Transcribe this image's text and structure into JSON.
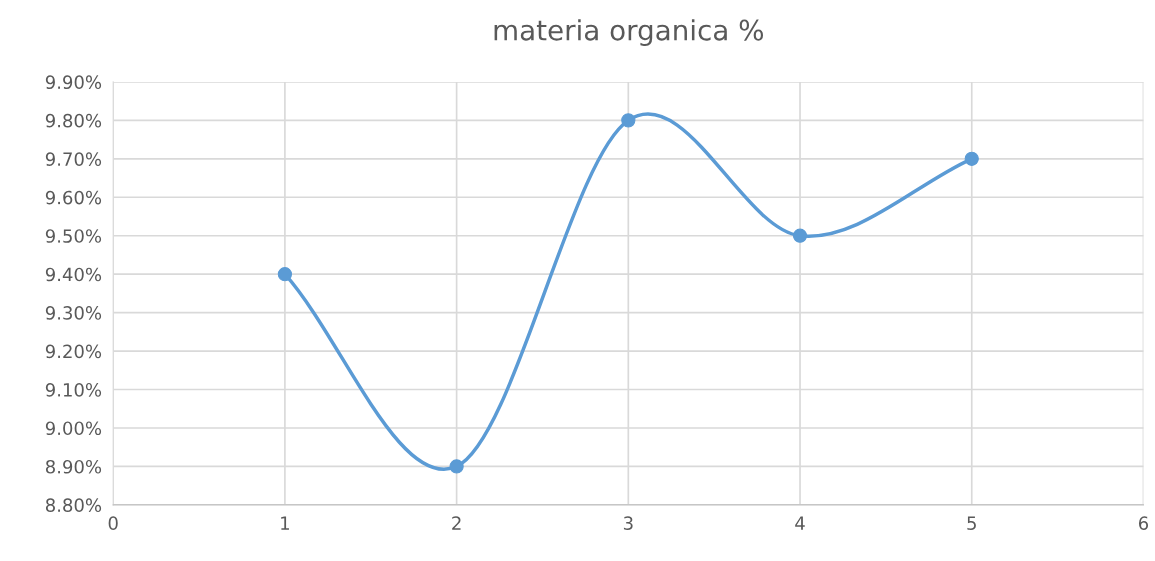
{
  "chart_data": {
    "type": "line",
    "title": "materia organica %",
    "x": [
      1,
      2,
      3,
      4,
      5
    ],
    "series": [
      {
        "color": "#5b9bd5",
        "values": [
          9.4,
          8.9,
          9.8,
          9.5,
          9.7
        ]
      }
    ],
    "xlim": [
      0,
      6
    ],
    "xticks": [
      0,
      1,
      2,
      3,
      4,
      5,
      6
    ],
    "ylim": [
      8.8,
      9.9
    ],
    "yticks": [
      {
        "value": 8.8,
        "label": "8.80%"
      },
      {
        "value": 8.9,
        "label": "8.90%"
      },
      {
        "value": 9.0,
        "label": "9.00%"
      },
      {
        "value": 9.1,
        "label": "9.10%"
      },
      {
        "value": 9.2,
        "label": "9.20%"
      },
      {
        "value": 9.3,
        "label": "9.30%"
      },
      {
        "value": 9.4,
        "label": "9.40%"
      },
      {
        "value": 9.5,
        "label": "9.50%"
      },
      {
        "value": 9.6,
        "label": "9.60%"
      },
      {
        "value": 9.7,
        "label": "9.70%"
      },
      {
        "value": 9.8,
        "label": "9.80%"
      },
      {
        "value": 9.9,
        "label": "9.90%"
      }
    ],
    "grid": true,
    "marker": "circle",
    "line_style": "solid"
  }
}
